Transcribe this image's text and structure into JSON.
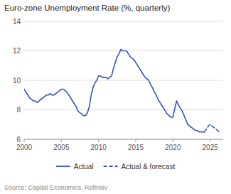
{
  "chart_data": {
    "type": "line",
    "title": "Euro-zone Unemployment Rate (%, quarterly)",
    "annotations": [
      "Source: Capital Economics, Refinitiv"
    ],
    "xlim": [
      2000,
      2026.75
    ],
    "ylim": [
      6,
      14
    ],
    "yticks": [
      6,
      8,
      10,
      12,
      14
    ],
    "xticks": [
      2000,
      2005,
      2010,
      2015,
      2020,
      2025
    ],
    "grid": true,
    "legend": "bottom",
    "series": [
      {
        "name": "Actual",
        "color": "#3355bb",
        "line_style": "solid",
        "x": [
          2000.0,
          2000.25,
          2000.5,
          2000.75,
          2001.0,
          2001.25,
          2001.5,
          2001.75,
          2002.0,
          2002.25,
          2002.5,
          2002.75,
          2003.0,
          2003.25,
          2003.5,
          2003.75,
          2004.0,
          2004.25,
          2004.5,
          2004.75,
          2005.0,
          2005.25,
          2005.5,
          2005.75,
          2006.0,
          2006.25,
          2006.5,
          2006.75,
          2007.0,
          2007.25,
          2007.5,
          2007.75,
          2008.0,
          2008.25,
          2008.5,
          2008.75,
          2009.0,
          2009.25,
          2009.5,
          2009.75,
          2010.0,
          2010.25,
          2010.5,
          2010.75,
          2011.0,
          2011.25,
          2011.5,
          2011.75,
          2012.0,
          2012.25,
          2012.5,
          2012.75,
          2013.0,
          2013.25,
          2013.5,
          2013.75,
          2014.0,
          2014.25,
          2014.5,
          2014.75,
          2015.0,
          2015.25,
          2015.5,
          2015.75,
          2016.0,
          2016.25,
          2016.5,
          2016.75,
          2017.0,
          2017.25,
          2017.5,
          2017.75,
          2018.0,
          2018.25,
          2018.5,
          2018.75,
          2019.0,
          2019.25,
          2019.5,
          2019.75,
          2020.0,
          2020.25,
          2020.5,
          2020.75,
          2021.0,
          2021.25,
          2021.5,
          2021.75,
          2022.0,
          2022.25,
          2022.5,
          2022.75,
          2023.0,
          2023.25,
          2023.5,
          2023.75,
          2024.0,
          2024.25
        ],
        "values": [
          9.4,
          9.2,
          9.0,
          8.8,
          8.7,
          8.6,
          8.6,
          8.5,
          8.6,
          8.7,
          8.8,
          8.9,
          9.0,
          9.0,
          9.1,
          9.0,
          9.0,
          9.1,
          9.2,
          9.3,
          9.4,
          9.4,
          9.3,
          9.2,
          9.0,
          8.8,
          8.6,
          8.4,
          8.2,
          7.9,
          7.8,
          7.7,
          7.6,
          7.6,
          7.8,
          8.2,
          9.0,
          9.5,
          9.8,
          10.0,
          10.3,
          10.3,
          10.2,
          10.2,
          10.2,
          10.1,
          10.2,
          10.3,
          10.8,
          11.2,
          11.6,
          11.8,
          12.1,
          12.0,
          12.0,
          12.0,
          11.8,
          11.6,
          11.5,
          11.4,
          11.2,
          11.0,
          10.8,
          10.6,
          10.4,
          10.2,
          10.1,
          10.0,
          9.7,
          9.5,
          9.2,
          9.0,
          8.7,
          8.5,
          8.3,
          8.1,
          7.9,
          7.7,
          7.6,
          7.5,
          7.5,
          8.1,
          8.6,
          8.3,
          8.1,
          7.9,
          7.6,
          7.3,
          7.0,
          6.9,
          6.8,
          6.7,
          6.6,
          6.6,
          6.5,
          6.5,
          6.5,
          6.5
        ]
      },
      {
        "name": "Actual & forecast",
        "color": "#3355bb",
        "line_style": "dashed",
        "x": [
          2024.25,
          2024.5,
          2024.75,
          2025.0,
          2025.25,
          2025.5,
          2025.75,
          2026.0,
          2026.25
        ],
        "values": [
          6.5,
          6.7,
          6.9,
          7.0,
          6.9,
          6.8,
          6.7,
          6.6,
          6.5
        ]
      }
    ]
  }
}
